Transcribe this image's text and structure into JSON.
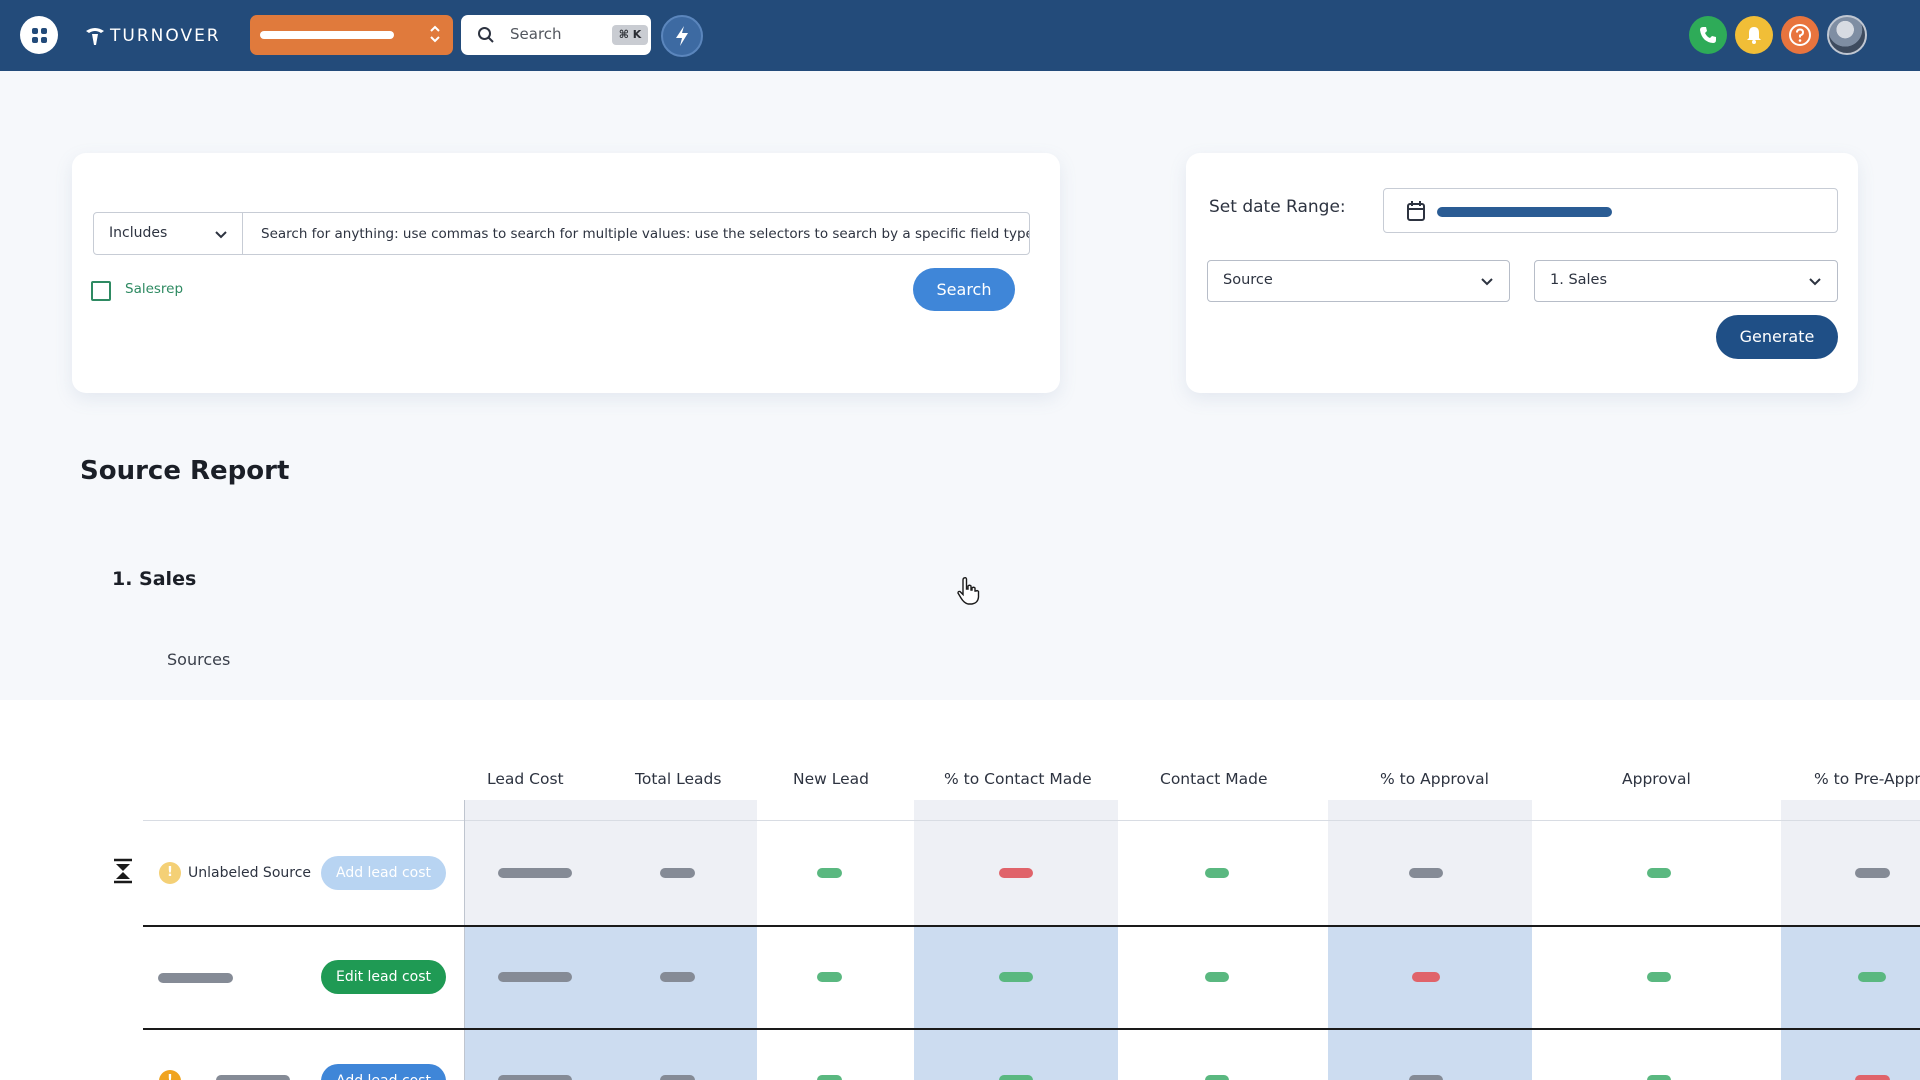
{
  "topbar": {
    "brand": "TURNOVER",
    "search_label": "Search",
    "search_shortcut": "⌘ K",
    "icons": [
      "apps-icon",
      "bolt-icon",
      "phone-icon",
      "bell-icon",
      "help-icon"
    ]
  },
  "search_panel": {
    "mode_select": "Includes",
    "search_placeholder": "Search for anything: use commas to search for multiple values: use the selectors to search by a specific field type",
    "salesrep_label": "Salesrep",
    "salesrep_checked": false,
    "search_button": "Search"
  },
  "date_panel": {
    "date_range_label": "Set date Range:",
    "type_select": "Source",
    "group_select": "1. Sales",
    "generate_button": "Generate"
  },
  "report": {
    "title": "Source Report",
    "group_title": "1. Sales",
    "sources_label": "Sources"
  },
  "table": {
    "columns": [
      "Lead Cost",
      "Total Leads",
      "New Lead",
      "% to Contact Made",
      "Contact Made",
      "% to Approval",
      "Approval",
      "% to Pre-Appr"
    ],
    "rows": [
      {
        "source_name": "Unlabeled Source",
        "warning": true,
        "action": "Add lead cost"
      },
      {
        "source_name": "",
        "warning": false,
        "action": "Edit lead cost"
      },
      {
        "source_name": "",
        "warning": true,
        "action": "Add lead cost"
      }
    ]
  },
  "colors": {
    "topbar": "#234b7a",
    "accent_orange": "#e07a3c",
    "primary_blue": "#3f86d8",
    "generate_navy": "#1f4f86",
    "edit_green": "#1f9a54",
    "positive": "#5ab880",
    "negative": "#e0636a",
    "neutral": "#858b96"
  }
}
